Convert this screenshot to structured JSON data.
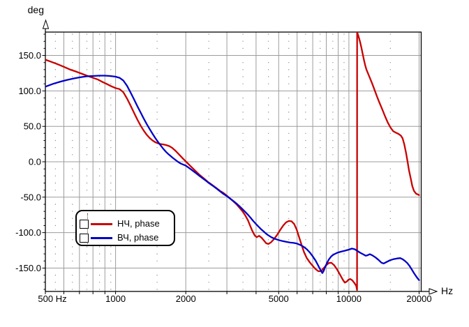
{
  "chart_data": {
    "type": "line",
    "title": "",
    "xlabel": "Hz",
    "ylabel": "deg",
    "x_scale": "log",
    "x_range": [
      500,
      20000
    ],
    "y_range_deg": [
      -183,
      183
    ],
    "y_major_step": 50,
    "y_minor_step": 10,
    "grid_on": true,
    "legend_position": "left-middle",
    "grid_color": "#9c9c9c",
    "dot_color": "#8a8a8a",
    "axis_color": "#000000",
    "x_ticks": [
      {
        "value": 500,
        "label": "500 Hz"
      },
      {
        "value": 1000,
        "label": "1000"
      },
      {
        "value": 2000,
        "label": "2000"
      },
      {
        "value": 5000,
        "label": "5000"
      },
      {
        "value": 10000,
        "label": "10000"
      },
      {
        "value": 20000,
        "label": "20000"
      }
    ],
    "y_ticks": [
      {
        "value": 150,
        "label": "150.0"
      },
      {
        "value": 100,
        "label": "100.0"
      },
      {
        "value": 50,
        "label": "50.0"
      },
      {
        "value": 0,
        "label": "0.0"
      },
      {
        "value": -50,
        "label": "-50.0"
      },
      {
        "value": -100,
        "label": "-100.0"
      },
      {
        "value": -150,
        "label": "-150.0"
      }
    ],
    "x_solid_gridlines": [
      600,
      700,
      800,
      900,
      1000,
      2000,
      3000,
      4000,
      5000,
      6000,
      7000,
      8000,
      9000,
      10000,
      20000
    ],
    "x_dotted_gridlines": [
      550,
      650,
      750,
      850,
      950,
      1500,
      2500,
      3500,
      4500,
      5500,
      6500,
      7500,
      8500,
      9500,
      15000
    ],
    "series": [
      {
        "name": "НЧ, phase",
        "color": "#c80000",
        "points": [
          [
            500,
            144
          ],
          [
            530,
            141
          ],
          [
            560,
            138
          ],
          [
            600,
            134
          ],
          [
            640,
            130
          ],
          [
            680,
            127
          ],
          [
            720,
            124
          ],
          [
            760,
            121
          ],
          [
            800,
            118.5
          ],
          [
            840,
            116
          ],
          [
            880,
            112.5
          ],
          [
            920,
            109.5
          ],
          [
            960,
            106.5
          ],
          [
            1000,
            104
          ],
          [
            1040,
            102.5
          ],
          [
            1080,
            98
          ],
          [
            1120,
            89
          ],
          [
            1160,
            79
          ],
          [
            1200,
            69
          ],
          [
            1240,
            59.5
          ],
          [
            1280,
            51
          ],
          [
            1320,
            44
          ],
          [
            1360,
            38
          ],
          [
            1400,
            33.5
          ],
          [
            1440,
            30
          ],
          [
            1480,
            27.5
          ],
          [
            1520,
            26
          ],
          [
            1560,
            25
          ],
          [
            1600,
            24.5
          ],
          [
            1650,
            23.5
          ],
          [
            1700,
            22
          ],
          [
            1750,
            19.5
          ],
          [
            1800,
            16
          ],
          [
            1850,
            12
          ],
          [
            1900,
            8
          ],
          [
            1950,
            4
          ],
          [
            2000,
            0.5
          ],
          [
            2100,
            -6.5
          ],
          [
            2200,
            -13
          ],
          [
            2300,
            -19
          ],
          [
            2400,
            -24
          ],
          [
            2500,
            -29
          ],
          [
            2600,
            -33
          ],
          [
            2700,
            -37
          ],
          [
            2800,
            -41
          ],
          [
            2900,
            -44
          ],
          [
            3000,
            -48
          ],
          [
            3100,
            -52
          ],
          [
            3200,
            -56
          ],
          [
            3300,
            -60
          ],
          [
            3400,
            -65
          ],
          [
            3500,
            -70
          ],
          [
            3600,
            -76
          ],
          [
            3700,
            -83
          ],
          [
            3780,
            -91
          ],
          [
            3860,
            -98
          ],
          [
            3950,
            -104
          ],
          [
            4030,
            -106.5
          ],
          [
            4120,
            -104.5
          ],
          [
            4220,
            -107
          ],
          [
            4320,
            -111
          ],
          [
            4420,
            -115
          ],
          [
            4520,
            -116
          ],
          [
            4640,
            -113.5
          ],
          [
            4780,
            -109
          ],
          [
            4930,
            -103
          ],
          [
            5080,
            -96
          ],
          [
            5230,
            -90
          ],
          [
            5380,
            -85.5
          ],
          [
            5530,
            -83.5
          ],
          [
            5680,
            -84
          ],
          [
            5830,
            -88
          ],
          [
            5980,
            -96
          ],
          [
            6130,
            -107
          ],
          [
            6280,
            -118
          ],
          [
            6430,
            -128
          ],
          [
            6600,
            -136
          ],
          [
            6800,
            -142
          ],
          [
            7000,
            -147
          ],
          [
            7200,
            -151.5
          ],
          [
            7400,
            -154.5
          ],
          [
            7600,
            -154.5
          ],
          [
            7800,
            -150
          ],
          [
            8000,
            -146
          ],
          [
            8200,
            -143
          ],
          [
            8400,
            -142.5
          ],
          [
            8650,
            -146
          ],
          [
            8900,
            -152
          ],
          [
            9150,
            -159
          ],
          [
            9400,
            -166
          ],
          [
            9600,
            -170.5
          ],
          [
            9800,
            -169
          ],
          [
            9950,
            -166.5
          ],
          [
            10150,
            -165.5
          ],
          [
            10350,
            -167.5
          ],
          [
            10550,
            -171
          ],
          [
            10750,
            -175
          ],
          [
            10840,
            -181
          ],
          [
            10850,
            183
          ],
          [
            11000,
            177
          ],
          [
            11150,
            170
          ],
          [
            11300,
            162
          ],
          [
            11450,
            153
          ],
          [
            11600,
            144
          ],
          [
            11750,
            136
          ],
          [
            11900,
            130
          ],
          [
            12100,
            124
          ],
          [
            12350,
            117
          ],
          [
            12600,
            110
          ],
          [
            12900,
            101
          ],
          [
            13200,
            92
          ],
          [
            13500,
            84
          ],
          [
            13900,
            74
          ],
          [
            14300,
            64
          ],
          [
            14700,
            55
          ],
          [
            15100,
            48
          ],
          [
            15500,
            43
          ],
          [
            15900,
            41
          ],
          [
            16300,
            39.5
          ],
          [
            16700,
            37
          ],
          [
            17000,
            33
          ],
          [
            17300,
            24
          ],
          [
            17600,
            12
          ],
          [
            17850,
            0
          ],
          [
            18100,
            -12
          ],
          [
            18400,
            -23
          ],
          [
            18700,
            -34
          ],
          [
            19000,
            -41
          ],
          [
            19400,
            -45
          ],
          [
            20000,
            -47
          ]
        ]
      },
      {
        "name": "ВЧ, phase",
        "color": "#0000c8",
        "points": [
          [
            500,
            106
          ],
          [
            540,
            110
          ],
          [
            580,
            113
          ],
          [
            620,
            115.5
          ],
          [
            660,
            117.5
          ],
          [
            700,
            119
          ],
          [
            750,
            120.5
          ],
          [
            800,
            121
          ],
          [
            850,
            121.5
          ],
          [
            900,
            121.5
          ],
          [
            950,
            121
          ],
          [
            1000,
            120
          ],
          [
            1040,
            118.5
          ],
          [
            1080,
            114.5
          ],
          [
            1120,
            107
          ],
          [
            1160,
            97.5
          ],
          [
            1200,
            88
          ],
          [
            1240,
            78.5
          ],
          [
            1280,
            69.5
          ],
          [
            1320,
            61
          ],
          [
            1360,
            53
          ],
          [
            1400,
            46
          ],
          [
            1440,
            39.5
          ],
          [
            1480,
            33.5
          ],
          [
            1520,
            28
          ],
          [
            1560,
            23
          ],
          [
            1600,
            18.5
          ],
          [
            1650,
            13.5
          ],
          [
            1700,
            9.5
          ],
          [
            1750,
            6
          ],
          [
            1800,
            3
          ],
          [
            1850,
            0
          ],
          [
            1900,
            -2.5
          ],
          [
            1950,
            -4
          ],
          [
            2000,
            -5.5
          ],
          [
            2100,
            -10.5
          ],
          [
            2200,
            -15.5
          ],
          [
            2300,
            -20.5
          ],
          [
            2400,
            -25
          ],
          [
            2500,
            -29.5
          ],
          [
            2600,
            -33.5
          ],
          [
            2700,
            -37.5
          ],
          [
            2800,
            -41.5
          ],
          [
            2900,
            -45.5
          ],
          [
            3000,
            -48.5
          ],
          [
            3100,
            -52
          ],
          [
            3200,
            -55.5
          ],
          [
            3300,
            -59
          ],
          [
            3400,
            -63
          ],
          [
            3500,
            -67
          ],
          [
            3600,
            -71
          ],
          [
            3700,
            -75
          ],
          [
            3800,
            -79.5
          ],
          [
            3900,
            -84
          ],
          [
            4000,
            -88
          ],
          [
            4100,
            -91.5
          ],
          [
            4200,
            -95
          ],
          [
            4300,
            -98
          ],
          [
            4400,
            -101
          ],
          [
            4500,
            -103.5
          ],
          [
            4650,
            -106.5
          ],
          [
            4800,
            -108.5
          ],
          [
            5000,
            -110.5
          ],
          [
            5200,
            -112
          ],
          [
            5400,
            -113
          ],
          [
            5600,
            -114
          ],
          [
            5800,
            -114.5
          ],
          [
            6000,
            -115.5
          ],
          [
            6200,
            -117.5
          ],
          [
            6400,
            -120
          ],
          [
            6600,
            -123.5
          ],
          [
            6800,
            -128
          ],
          [
            7000,
            -133.5
          ],
          [
            7200,
            -139.5
          ],
          [
            7400,
            -147
          ],
          [
            7550,
            -152.5
          ],
          [
            7700,
            -157
          ],
          [
            7800,
            -154
          ],
          [
            7900,
            -149
          ],
          [
            8050,
            -143
          ],
          [
            8200,
            -138
          ],
          [
            8400,
            -133.5
          ],
          [
            8600,
            -131
          ],
          [
            8900,
            -128.5
          ],
          [
            9200,
            -127
          ],
          [
            9600,
            -125.5
          ],
          [
            10000,
            -124
          ],
          [
            10300,
            -122.5
          ],
          [
            10600,
            -123.5
          ],
          [
            10900,
            -126
          ],
          [
            11200,
            -128.5
          ],
          [
            11500,
            -130.5
          ],
          [
            11800,
            -132.5
          ],
          [
            12000,
            -132
          ],
          [
            12300,
            -130.5
          ],
          [
            12600,
            -132
          ],
          [
            13000,
            -135
          ],
          [
            13400,
            -138.5
          ],
          [
            13800,
            -142.5
          ],
          [
            14100,
            -143.5
          ],
          [
            14500,
            -141.5
          ],
          [
            15000,
            -139
          ],
          [
            15500,
            -137.5
          ],
          [
            16100,
            -136.5
          ],
          [
            16600,
            -136
          ],
          [
            17000,
            -137.5
          ],
          [
            17400,
            -140
          ],
          [
            17800,
            -143
          ],
          [
            18200,
            -147
          ],
          [
            18600,
            -152
          ],
          [
            19000,
            -157
          ],
          [
            19400,
            -161.5
          ],
          [
            19700,
            -164.5
          ],
          [
            20000,
            -167
          ]
        ]
      }
    ]
  }
}
